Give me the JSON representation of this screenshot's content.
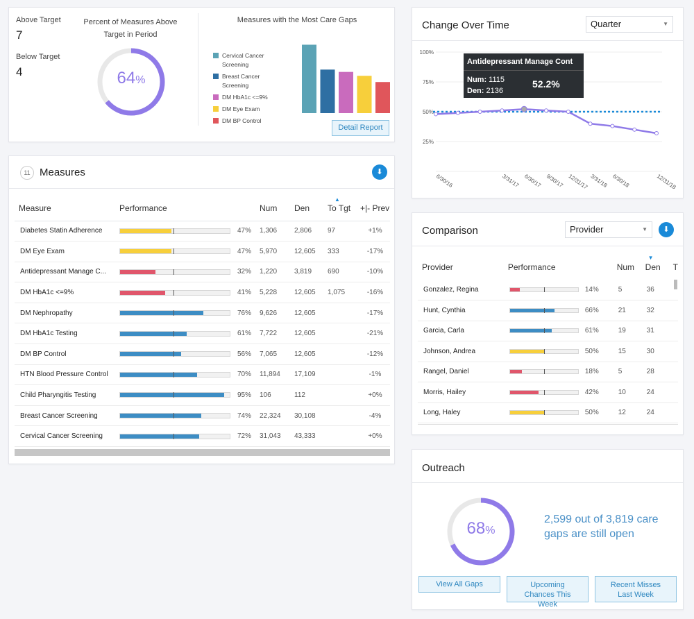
{
  "summary": {
    "above_target_label": "Above Target",
    "above_target_value": "7",
    "below_target_label": "Below Target",
    "below_target_value": "4",
    "percent_title_line1": "Percent of Measures Above",
    "percent_title_line2": "Target in Period",
    "percent_number": "64",
    "percent_symbol": "%",
    "percent_value": 0.64,
    "gaps_title": "Measures with the Most Care Gaps",
    "detail_button": "Detail Report"
  },
  "gaps_chart": {
    "legend": [
      {
        "label": "Cervical Cancer Screening",
        "color": "#5ba3b5"
      },
      {
        "label": "Breast Cancer Screening",
        "color": "#2e6fa3"
      },
      {
        "label": "DM HbA1c <=9%",
        "color": "#c96bbd"
      },
      {
        "label": "DM Eye Exam",
        "color": "#f7cf3b"
      },
      {
        "label": "DM BP Control",
        "color": "#e0565b"
      }
    ]
  },
  "measures": {
    "count": "11",
    "title": "Measures",
    "headers": {
      "measure": "Measure",
      "performance": "Performance",
      "num": "Num",
      "den": "Den",
      "to_tgt": "To Tgt",
      "prev": "+|- Prev"
    },
    "rows": [
      {
        "name": "Diabetes Statin Adherence",
        "pct": "47%",
        "value": 47,
        "target": 49,
        "color": "#f7cf3b",
        "num": "1,306",
        "den": "2,806",
        "to_tgt": "97",
        "prev": "+1%"
      },
      {
        "name": "DM Eye Exam",
        "pct": "47%",
        "value": 47,
        "target": 49,
        "color": "#f7cf3b",
        "num": "5,970",
        "den": "12,605",
        "to_tgt": "333",
        "prev": "-17%"
      },
      {
        "name": "Antidepressant Manage C...",
        "pct": "32%",
        "value": 32,
        "target": 49,
        "color": "#e0566b",
        "num": "1,220",
        "den": "3,819",
        "to_tgt": "690",
        "prev": "-10%"
      },
      {
        "name": "DM HbA1c <=9%",
        "pct": "41%",
        "value": 41,
        "target": 49,
        "color": "#e0566b",
        "num": "5,228",
        "den": "12,605",
        "to_tgt": "1,075",
        "prev": "-16%"
      },
      {
        "name": "DM Nephropathy",
        "pct": "76%",
        "value": 76,
        "target": 49,
        "color": "#3d8dc4",
        "num": "9,626",
        "den": "12,605",
        "to_tgt": "",
        "prev": "-17%"
      },
      {
        "name": "DM HbA1c Testing",
        "pct": "61%",
        "value": 61,
        "target": 49,
        "color": "#3d8dc4",
        "num": "7,722",
        "den": "12,605",
        "to_tgt": "",
        "prev": "-21%"
      },
      {
        "name": "DM BP Control",
        "pct": "56%",
        "value": 56,
        "target": 49,
        "color": "#3d8dc4",
        "num": "7,065",
        "den": "12,605",
        "to_tgt": "",
        "prev": "-12%"
      },
      {
        "name": "HTN Blood Pressure Control",
        "pct": "70%",
        "value": 70,
        "target": 49,
        "color": "#3d8dc4",
        "num": "11,894",
        "den": "17,109",
        "to_tgt": "",
        "prev": "-1%"
      },
      {
        "name": "Child Pharyngitis Testing",
        "pct": "95%",
        "value": 95,
        "target": 49,
        "color": "#3d8dc4",
        "num": "106",
        "den": "112",
        "to_tgt": "",
        "prev": "+0%"
      },
      {
        "name": "Breast Cancer Screening",
        "pct": "74%",
        "value": 74,
        "target": 49,
        "color": "#3d8dc4",
        "num": "22,324",
        "den": "30,108",
        "to_tgt": "",
        "prev": "-4%"
      },
      {
        "name": "Cervical Cancer Screening",
        "pct": "72%",
        "value": 72,
        "target": 49,
        "color": "#3d8dc4",
        "num": "31,043",
        "den": "43,333",
        "to_tgt": "",
        "prev": "+0%"
      }
    ]
  },
  "change_over_time": {
    "title": "Change Over Time",
    "period_select": "Quarter",
    "tooltip": {
      "title": "Antidepressant Manage Cont",
      "num_label": "Num:",
      "num": "1115",
      "den_label": "Den:",
      "den": "2136",
      "pct": "52.2%"
    }
  },
  "chart_data": {
    "type": "line",
    "x": [
      "6/30/16",
      "9/30/16",
      "12/31/16",
      "3/31/17",
      "6/30/17",
      "9/30/17",
      "12/31/17",
      "3/31/18",
      "6/30/18",
      "9/30/18",
      "12/31/18"
    ],
    "x_tick_labels": [
      "6/30/16",
      "3/31/17",
      "6/30/17",
      "9/30/17",
      "12/31/17",
      "3/31/18",
      "6/30/18",
      "12/31/18"
    ],
    "series": [
      {
        "values": [
          48,
          49,
          50,
          51,
          52.2,
          51,
          50,
          40,
          38,
          35,
          32
        ],
        "color": "#8f7ae8"
      }
    ],
    "target": 50,
    "y_ticks": [
      "100%",
      "75%",
      "50%",
      "25%"
    ],
    "ylim": [
      0,
      100
    ]
  },
  "comparison": {
    "title": "Comparison",
    "group_select": "Provider",
    "headers": {
      "provider": "Provider",
      "performance": "Performance",
      "num": "Num",
      "den": "Den",
      "extra": "T"
    },
    "rows": [
      {
        "name": "Gonzalez, Regina",
        "pct": "14%",
        "value": 14,
        "target": 50,
        "color": "#e0566b",
        "num": "5",
        "den": "36"
      },
      {
        "name": "Hunt, Cynthia",
        "pct": "66%",
        "value": 66,
        "target": 50,
        "color": "#3d8dc4",
        "num": "21",
        "den": "32"
      },
      {
        "name": "Garcia, Carla",
        "pct": "61%",
        "value": 61,
        "target": 50,
        "color": "#3d8dc4",
        "num": "19",
        "den": "31"
      },
      {
        "name": "Johnson, Andrea",
        "pct": "50%",
        "value": 50,
        "target": 50,
        "color": "#f7cf3b",
        "num": "15",
        "den": "30"
      },
      {
        "name": "Rangel, Daniel",
        "pct": "18%",
        "value": 18,
        "target": 50,
        "color": "#e0566b",
        "num": "5",
        "den": "28"
      },
      {
        "name": "Morris, Hailey",
        "pct": "42%",
        "value": 42,
        "target": 50,
        "color": "#e0566b",
        "num": "10",
        "den": "24"
      },
      {
        "name": "Long, Haley",
        "pct": "50%",
        "value": 50,
        "target": 50,
        "color": "#f7cf3b",
        "num": "12",
        "den": "24"
      }
    ]
  },
  "outreach": {
    "title": "Outreach",
    "percent_number": "68",
    "percent_symbol": "%",
    "percent_value": 0.68,
    "message": "2,599 out of 3,819 care gaps are still open",
    "buttons": [
      "View All Gaps",
      "Upcoming Chances This Week",
      "Recent Misses Last Week"
    ]
  },
  "colors": {
    "accent": "#8f7ae8",
    "brand_blue": "#1a8ad8",
    "target_line": "#1a8ad8"
  }
}
